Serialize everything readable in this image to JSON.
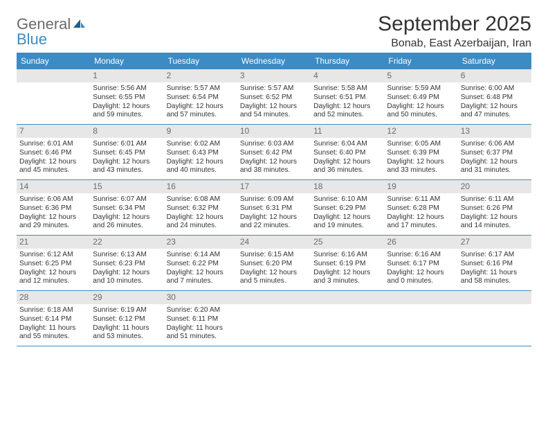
{
  "logo": {
    "general": "General",
    "blue": "Blue"
  },
  "title": "September 2025",
  "location": "Bonab, East Azerbaijan, Iran",
  "colors": {
    "header_bg": "#3b8bc4",
    "header_text": "#ffffff",
    "daynum_bg": "#e7e7e7",
    "daynum_text": "#6b6b6b",
    "body_text": "#333333",
    "rule": "#3b8bc4"
  },
  "day_names": [
    "Sunday",
    "Monday",
    "Tuesday",
    "Wednesday",
    "Thursday",
    "Friday",
    "Saturday"
  ],
  "weeks": [
    [
      {
        "blank": true
      },
      {
        "day": "1",
        "sunrise": "Sunrise: 5:56 AM",
        "sunset": "Sunset: 6:55 PM",
        "daylight": "Daylight: 12 hours and 59 minutes."
      },
      {
        "day": "2",
        "sunrise": "Sunrise: 5:57 AM",
        "sunset": "Sunset: 6:54 PM",
        "daylight": "Daylight: 12 hours and 57 minutes."
      },
      {
        "day": "3",
        "sunrise": "Sunrise: 5:57 AM",
        "sunset": "Sunset: 6:52 PM",
        "daylight": "Daylight: 12 hours and 54 minutes."
      },
      {
        "day": "4",
        "sunrise": "Sunrise: 5:58 AM",
        "sunset": "Sunset: 6:51 PM",
        "daylight": "Daylight: 12 hours and 52 minutes."
      },
      {
        "day": "5",
        "sunrise": "Sunrise: 5:59 AM",
        "sunset": "Sunset: 6:49 PM",
        "daylight": "Daylight: 12 hours and 50 minutes."
      },
      {
        "day": "6",
        "sunrise": "Sunrise: 6:00 AM",
        "sunset": "Sunset: 6:48 PM",
        "daylight": "Daylight: 12 hours and 47 minutes."
      }
    ],
    [
      {
        "day": "7",
        "sunrise": "Sunrise: 6:01 AM",
        "sunset": "Sunset: 6:46 PM",
        "daylight": "Daylight: 12 hours and 45 minutes."
      },
      {
        "day": "8",
        "sunrise": "Sunrise: 6:01 AM",
        "sunset": "Sunset: 6:45 PM",
        "daylight": "Daylight: 12 hours and 43 minutes."
      },
      {
        "day": "9",
        "sunrise": "Sunrise: 6:02 AM",
        "sunset": "Sunset: 6:43 PM",
        "daylight": "Daylight: 12 hours and 40 minutes."
      },
      {
        "day": "10",
        "sunrise": "Sunrise: 6:03 AM",
        "sunset": "Sunset: 6:42 PM",
        "daylight": "Daylight: 12 hours and 38 minutes."
      },
      {
        "day": "11",
        "sunrise": "Sunrise: 6:04 AM",
        "sunset": "Sunset: 6:40 PM",
        "daylight": "Daylight: 12 hours and 36 minutes."
      },
      {
        "day": "12",
        "sunrise": "Sunrise: 6:05 AM",
        "sunset": "Sunset: 6:39 PM",
        "daylight": "Daylight: 12 hours and 33 minutes."
      },
      {
        "day": "13",
        "sunrise": "Sunrise: 6:06 AM",
        "sunset": "Sunset: 6:37 PM",
        "daylight": "Daylight: 12 hours and 31 minutes."
      }
    ],
    [
      {
        "day": "14",
        "sunrise": "Sunrise: 6:06 AM",
        "sunset": "Sunset: 6:36 PM",
        "daylight": "Daylight: 12 hours and 29 minutes."
      },
      {
        "day": "15",
        "sunrise": "Sunrise: 6:07 AM",
        "sunset": "Sunset: 6:34 PM",
        "daylight": "Daylight: 12 hours and 26 minutes."
      },
      {
        "day": "16",
        "sunrise": "Sunrise: 6:08 AM",
        "sunset": "Sunset: 6:32 PM",
        "daylight": "Daylight: 12 hours and 24 minutes."
      },
      {
        "day": "17",
        "sunrise": "Sunrise: 6:09 AM",
        "sunset": "Sunset: 6:31 PM",
        "daylight": "Daylight: 12 hours and 22 minutes."
      },
      {
        "day": "18",
        "sunrise": "Sunrise: 6:10 AM",
        "sunset": "Sunset: 6:29 PM",
        "daylight": "Daylight: 12 hours and 19 minutes."
      },
      {
        "day": "19",
        "sunrise": "Sunrise: 6:11 AM",
        "sunset": "Sunset: 6:28 PM",
        "daylight": "Daylight: 12 hours and 17 minutes."
      },
      {
        "day": "20",
        "sunrise": "Sunrise: 6:11 AM",
        "sunset": "Sunset: 6:26 PM",
        "daylight": "Daylight: 12 hours and 14 minutes."
      }
    ],
    [
      {
        "day": "21",
        "sunrise": "Sunrise: 6:12 AM",
        "sunset": "Sunset: 6:25 PM",
        "daylight": "Daylight: 12 hours and 12 minutes."
      },
      {
        "day": "22",
        "sunrise": "Sunrise: 6:13 AM",
        "sunset": "Sunset: 6:23 PM",
        "daylight": "Daylight: 12 hours and 10 minutes."
      },
      {
        "day": "23",
        "sunrise": "Sunrise: 6:14 AM",
        "sunset": "Sunset: 6:22 PM",
        "daylight": "Daylight: 12 hours and 7 minutes."
      },
      {
        "day": "24",
        "sunrise": "Sunrise: 6:15 AM",
        "sunset": "Sunset: 6:20 PM",
        "daylight": "Daylight: 12 hours and 5 minutes."
      },
      {
        "day": "25",
        "sunrise": "Sunrise: 6:16 AM",
        "sunset": "Sunset: 6:19 PM",
        "daylight": "Daylight: 12 hours and 3 minutes."
      },
      {
        "day": "26",
        "sunrise": "Sunrise: 6:16 AM",
        "sunset": "Sunset: 6:17 PM",
        "daylight": "Daylight: 12 hours and 0 minutes."
      },
      {
        "day": "27",
        "sunrise": "Sunrise: 6:17 AM",
        "sunset": "Sunset: 6:16 PM",
        "daylight": "Daylight: 11 hours and 58 minutes."
      }
    ],
    [
      {
        "day": "28",
        "sunrise": "Sunrise: 6:18 AM",
        "sunset": "Sunset: 6:14 PM",
        "daylight": "Daylight: 11 hours and 55 minutes."
      },
      {
        "day": "29",
        "sunrise": "Sunrise: 6:19 AM",
        "sunset": "Sunset: 6:12 PM",
        "daylight": "Daylight: 11 hours and 53 minutes."
      },
      {
        "day": "30",
        "sunrise": "Sunrise: 6:20 AM",
        "sunset": "Sunset: 6:11 PM",
        "daylight": "Daylight: 11 hours and 51 minutes."
      },
      {
        "blank": true
      },
      {
        "blank": true
      },
      {
        "blank": true
      },
      {
        "blank": true
      }
    ]
  ]
}
